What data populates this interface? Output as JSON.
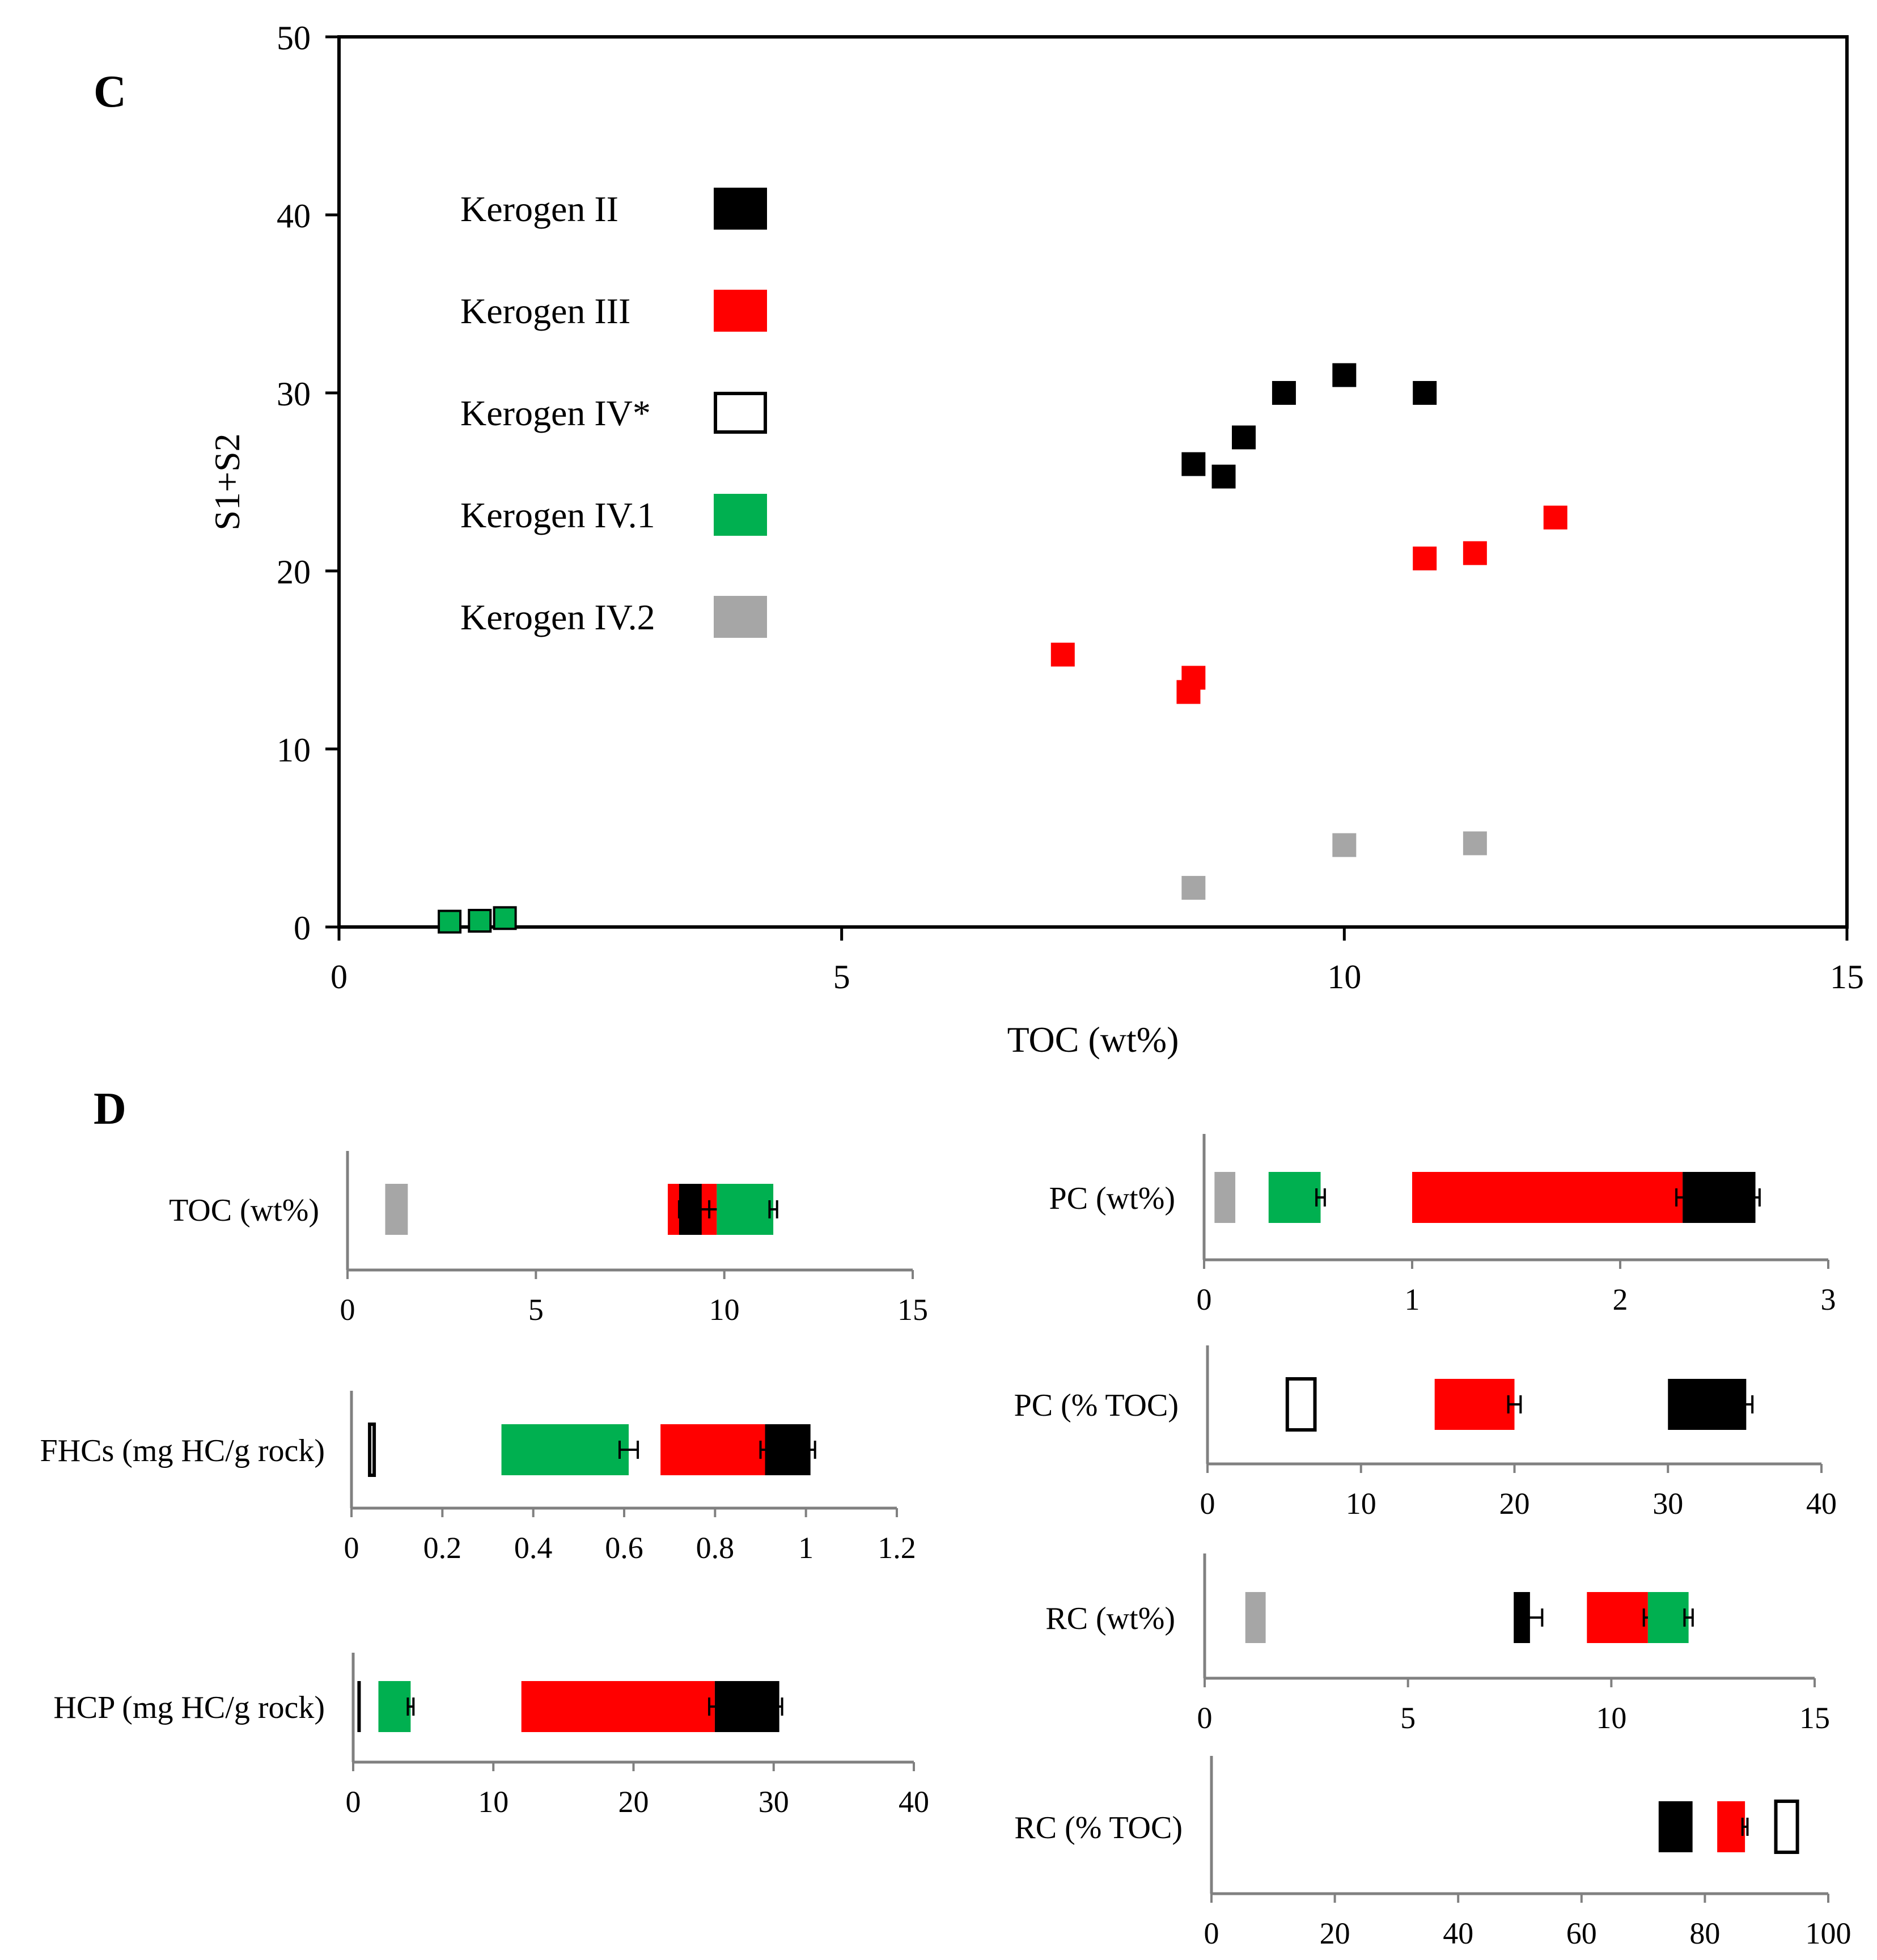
{
  "colors": {
    "kerogen_ii": "#000000",
    "kerogen_iii": "#ff0000",
    "kerogen_iv_star": "#ffffff",
    "kerogen_iv1": "#00b050",
    "kerogen_iv2": "#a6a6a6",
    "axis": "#808080"
  },
  "chart_data": [
    {
      "panel": "C",
      "type": "scatter",
      "xlabel": "TOC (wt%)",
      "ylabel": "S1+S2",
      "xlim": [
        0,
        15
      ],
      "ylim": [
        0,
        50
      ],
      "xticks": [
        "0",
        "5",
        "10",
        "15"
      ],
      "yticks": [
        "0",
        "10",
        "20",
        "30",
        "40",
        "50"
      ],
      "legend": [
        {
          "label": "Kerogen II",
          "key": "kerogen_ii"
        },
        {
          "label": "Kerogen III",
          "key": "kerogen_iii"
        },
        {
          "label": "Kerogen IV*",
          "key": "kerogen_iv_star"
        },
        {
          "label": "Kerogen IV.1",
          "key": "kerogen_iv1"
        },
        {
          "label": "Kerogen IV.2",
          "key": "kerogen_iv2"
        }
      ],
      "series": [
        {
          "name": "Kerogen II",
          "key": "kerogen_ii",
          "points": [
            [
              8.5,
              26
            ],
            [
              8.8,
              25.3
            ],
            [
              9.0,
              27.5
            ],
            [
              9.4,
              30
            ],
            [
              10.0,
              31
            ],
            [
              10.8,
              30
            ]
          ]
        },
        {
          "name": "Kerogen III",
          "key": "kerogen_iii",
          "points": [
            [
              7.2,
              15.3
            ],
            [
              8.45,
              13.2
            ],
            [
              8.5,
              14
            ],
            [
              10.8,
              20.7
            ],
            [
              11.3,
              21
            ],
            [
              12.1,
              23
            ]
          ]
        },
        {
          "name": "Kerogen IV.1",
          "key": "kerogen_iv1",
          "points": [
            [
              1.1,
              0.3
            ],
            [
              1.4,
              0.35
            ],
            [
              1.65,
              0.5
            ]
          ]
        },
        {
          "name": "Kerogen IV.2",
          "key": "kerogen_iv2",
          "points": [
            [
              8.5,
              2.2
            ],
            [
              10.0,
              4.6
            ],
            [
              11.3,
              4.7
            ]
          ]
        }
      ]
    },
    {
      "panel": "D",
      "type": "bar",
      "orientation": "horizontal",
      "subplots": [
        {
          "id": "toc",
          "label": "TOC (wt%)",
          "xlim": [
            0,
            15
          ],
          "ticks": [
            "0",
            "5",
            "10",
            "15"
          ],
          "bars": [
            {
              "key": "kerogen_iv2",
              "start": 1.0,
              "end": 1.6,
              "err": 0
            },
            {
              "key": "kerogen_iii",
              "start": 8.5,
              "end": 9.8,
              "err": 0.2
            },
            {
              "key": "kerogen_ii",
              "start": 8.8,
              "end": 9.4,
              "err": 0.6
            },
            {
              "key": "kerogen_iv1",
              "start": 9.8,
              "end": 11.3,
              "err": 0.1
            }
          ]
        },
        {
          "id": "fhcs",
          "label": "FHCs (mg HC/g rock)",
          "xlim": [
            0,
            1.2
          ],
          "ticks": [
            "0",
            "0.2",
            "0.4",
            "0.6",
            "0.8",
            "1",
            "1.2"
          ],
          "bars": [
            {
              "key": "kerogen_iv_star",
              "start": 0.04,
              "end": 0.05,
              "err": 0
            },
            {
              "key": "kerogen_iv1",
              "start": 0.33,
              "end": 0.61,
              "err": 0.02
            },
            {
              "key": "kerogen_iii",
              "start": 0.68,
              "end": 0.91,
              "err": 0.01
            },
            {
              "key": "kerogen_ii",
              "start": 0.91,
              "end": 1.01,
              "err": 0.01
            }
          ]
        },
        {
          "id": "hcp",
          "label": "HCP (mg HC/g rock)",
          "xlim": [
            0,
            40
          ],
          "ticks": [
            "0",
            "10",
            "20",
            "30",
            "40"
          ],
          "bars": [
            {
              "key": "kerogen_ii",
              "start": 0.3,
              "end": 0.5,
              "err": 0
            },
            {
              "key": "kerogen_iv1",
              "start": 1.8,
              "end": 4.1,
              "err": 0.2
            },
            {
              "key": "kerogen_iii",
              "start": 12.0,
              "end": 25.8,
              "err": 0.4
            },
            {
              "key": "kerogen_ii",
              "start": 25.8,
              "end": 30.4,
              "err": 0.2
            }
          ]
        },
        {
          "id": "pc_wt",
          "label": "PC (wt%)",
          "xlim": [
            0,
            3
          ],
          "ticks": [
            "0",
            "1",
            "2",
            "3"
          ],
          "bars": [
            {
              "key": "kerogen_iv2",
              "start": 0.05,
              "end": 0.15,
              "err": 0
            },
            {
              "key": "kerogen_iv1",
              "start": 0.31,
              "end": 0.56,
              "err": 0.02
            },
            {
              "key": "kerogen_iii",
              "start": 1.0,
              "end": 2.3,
              "err": 0.03
            },
            {
              "key": "kerogen_ii",
              "start": 2.3,
              "end": 2.65,
              "err": 0.02
            }
          ]
        },
        {
          "id": "pc_toc",
          "label": "PC (% TOC)",
          "xlim": [
            0,
            40
          ],
          "ticks": [
            "0",
            "10",
            "20",
            "30",
            "40"
          ],
          "bars": [
            {
              "key": "kerogen_iv_star",
              "start": 5.2,
              "end": 7.0,
              "err": 0
            },
            {
              "key": "kerogen_iii",
              "start": 14.8,
              "end": 20.0,
              "err": 0.4
            },
            {
              "key": "kerogen_ii",
              "start": 30.0,
              "end": 35.1,
              "err": 0.4
            }
          ]
        },
        {
          "id": "rc_wt",
          "label": "RC (wt%)",
          "xlim": [
            0,
            15
          ],
          "ticks": [
            "0",
            "5",
            "10",
            "15"
          ],
          "bars": [
            {
              "key": "kerogen_iv2",
              "start": 1.0,
              "end": 1.5,
              "err": 0
            },
            {
              "key": "kerogen_ii",
              "start": 7.6,
              "end": 8.0,
              "err": 0.3
            },
            {
              "key": "kerogen_iii",
              "start": 9.4,
              "end": 10.9,
              "err": 0.1
            },
            {
              "key": "kerogen_iv1",
              "start": 10.9,
              "end": 11.9,
              "err": 0.1
            }
          ]
        },
        {
          "id": "rc_toc",
          "label": "RC (% TOC)",
          "xlim": [
            0,
            100
          ],
          "ticks": [
            "0",
            "20",
            "40",
            "60",
            "80",
            "100"
          ],
          "bars": [
            {
              "key": "kerogen_ii",
              "start": 72.5,
              "end": 78.0,
              "err": 0
            },
            {
              "key": "kerogen_iii",
              "start": 82.0,
              "end": 86.5,
              "err": 0.4
            },
            {
              "key": "kerogen_iv_star",
              "start": 91.5,
              "end": 95.0,
              "err": 0
            }
          ]
        }
      ]
    }
  ],
  "labels": {
    "panel_c": "C",
    "panel_d": "D"
  }
}
